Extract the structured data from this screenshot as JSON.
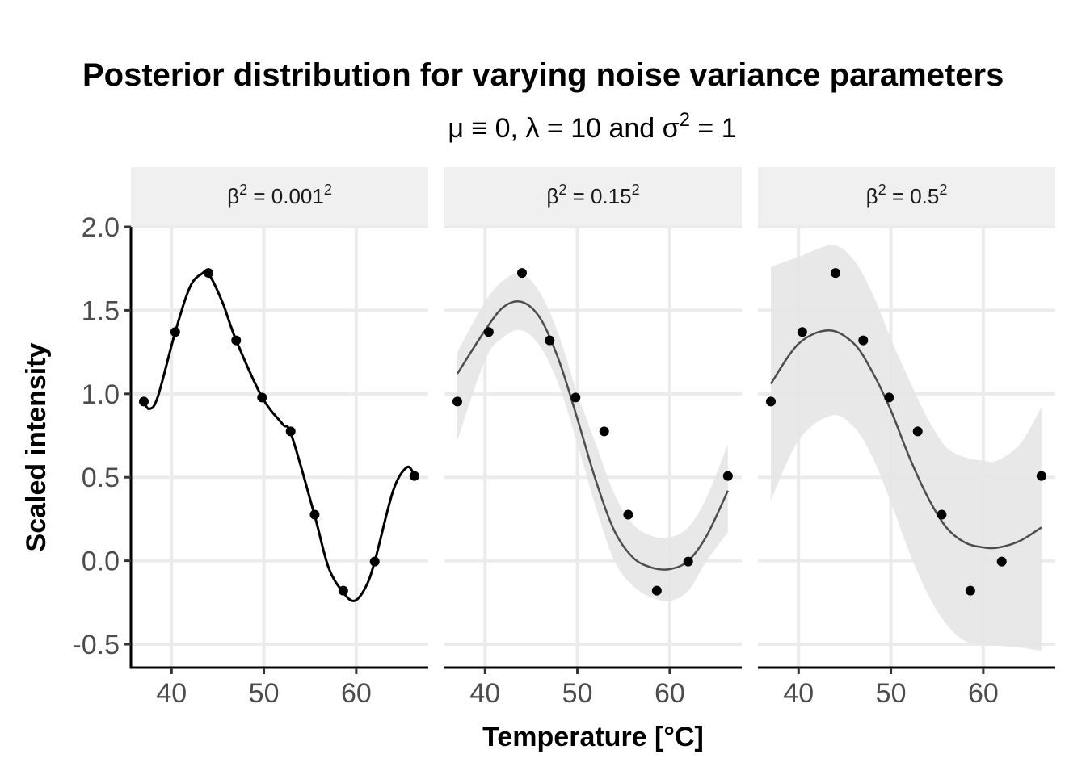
{
  "chart_data": {
    "type": "scatter",
    "title": "Posterior distribution for varying noise variance parameters",
    "subtitle": {
      "text": "μ ≡ 0, λ = 10 and σ",
      "sup": "2",
      "tail": " = 1"
    },
    "xlabel": "Temperature [°C]",
    "ylabel": "Scaled intensity",
    "xlim": [
      35.6,
      67.8
    ],
    "ylim": [
      -0.64,
      2.0
    ],
    "xticks": [
      40,
      50,
      60
    ],
    "yticks": [
      -0.5,
      0.0,
      0.5,
      1.0,
      1.5,
      2.0
    ],
    "ytick_labels": [
      "-0.5",
      "0.0",
      "0.5",
      "1.0",
      "1.5",
      "2.0"
    ],
    "grid": true,
    "colors": {
      "points": "#000000",
      "mean_line": "#4d4d4d",
      "band": "#e5e5e5",
      "strip": "#f0f0f0",
      "grid": "#ebebeb"
    },
    "points": {
      "x": [
        37.0,
        40.4,
        44.0,
        47.0,
        49.8,
        52.9,
        55.5,
        58.6,
        62.0,
        66.3
      ],
      "y": [
        0.954,
        1.37,
        1.724,
        1.32,
        0.978,
        0.775,
        0.276,
        -0.179,
        -0.005,
        0.508
      ]
    },
    "panels": [
      {
        "label": {
          "pre": "β",
          "sup1": "2",
          "mid": " = 0.001",
          "sup2": "2"
        },
        "mean": [
          [
            37,
            0.95
          ],
          [
            37.6,
            0.91
          ],
          [
            38.5,
            0.98
          ],
          [
            40.4,
            1.37
          ],
          [
            42,
            1.64
          ],
          [
            43.3,
            1.72
          ],
          [
            44,
            1.72
          ],
          [
            45.5,
            1.55
          ],
          [
            47,
            1.32
          ],
          [
            49.8,
            0.98
          ],
          [
            52,
            0.82
          ],
          [
            53,
            0.75
          ],
          [
            55.5,
            0.27
          ],
          [
            57,
            -0.04
          ],
          [
            58.6,
            -0.19
          ],
          [
            59.8,
            -0.24
          ],
          [
            61,
            -0.16
          ],
          [
            62,
            -0.005
          ],
          [
            64,
            0.42
          ],
          [
            65.5,
            0.56
          ],
          [
            66.3,
            0.51
          ]
        ],
        "upper": null,
        "lower": null
      },
      {
        "label": {
          "pre": "β",
          "sup1": "2",
          "mid": " = 0.15",
          "sup2": "2"
        },
        "mean": [
          [
            37,
            1.12
          ],
          [
            40,
            1.38
          ],
          [
            42,
            1.52
          ],
          [
            44,
            1.55
          ],
          [
            46,
            1.45
          ],
          [
            48,
            1.2
          ],
          [
            50,
            0.85
          ],
          [
            52,
            0.48
          ],
          [
            54,
            0.18
          ],
          [
            56,
            0.02
          ],
          [
            58,
            -0.04
          ],
          [
            60,
            -0.05
          ],
          [
            62,
            0.0
          ],
          [
            64,
            0.15
          ],
          [
            66.3,
            0.42
          ]
        ],
        "upper": [
          [
            37,
            1.25
          ],
          [
            40,
            1.55
          ],
          [
            42,
            1.68
          ],
          [
            44,
            1.72
          ],
          [
            46,
            1.6
          ],
          [
            48,
            1.35
          ],
          [
            50,
            1.0
          ],
          [
            52,
            0.7
          ],
          [
            54,
            0.4
          ],
          [
            56,
            0.22
          ],
          [
            58,
            0.15
          ],
          [
            60,
            0.14
          ],
          [
            62,
            0.2
          ],
          [
            64,
            0.38
          ],
          [
            66.3,
            0.7
          ]
        ],
        "lower": [
          [
            37,
            0.72
          ],
          [
            40,
            1.2
          ],
          [
            42,
            1.34
          ],
          [
            44,
            1.38
          ],
          [
            46,
            1.28
          ],
          [
            48,
            1.05
          ],
          [
            50,
            0.7
          ],
          [
            52,
            0.32
          ],
          [
            54,
            0.0
          ],
          [
            56,
            -0.15
          ],
          [
            58,
            -0.22
          ],
          [
            60,
            -0.24
          ],
          [
            62,
            -0.18
          ],
          [
            64,
            0.0
          ],
          [
            66.3,
            0.17
          ]
        ]
      },
      {
        "label": {
          "pre": "β",
          "sup1": "2",
          "mid": " = 0.5",
          "sup2": "2"
        },
        "mean": [
          [
            37,
            1.06
          ],
          [
            40,
            1.3
          ],
          [
            43.3,
            1.38
          ],
          [
            46,
            1.3
          ],
          [
            48,
            1.13
          ],
          [
            50,
            0.9
          ],
          [
            52,
            0.62
          ],
          [
            54,
            0.38
          ],
          [
            56,
            0.2
          ],
          [
            58,
            0.11
          ],
          [
            60,
            0.08
          ],
          [
            61.7,
            0.08
          ],
          [
            64,
            0.12
          ],
          [
            66.3,
            0.2
          ]
        ],
        "upper": [
          [
            37,
            1.76
          ],
          [
            40,
            1.82
          ],
          [
            43.7,
            1.89
          ],
          [
            46,
            1.8
          ],
          [
            48,
            1.6
          ],
          [
            50,
            1.33
          ],
          [
            52,
            1.08
          ],
          [
            54,
            0.85
          ],
          [
            56,
            0.68
          ],
          [
            58,
            0.62
          ],
          [
            60,
            0.6
          ],
          [
            61.5,
            0.6
          ],
          [
            64,
            0.7
          ],
          [
            66.3,
            0.92
          ]
        ],
        "lower": [
          [
            37,
            0.36
          ],
          [
            40,
            0.72
          ],
          [
            43.5,
            0.87
          ],
          [
            46,
            0.8
          ],
          [
            48,
            0.62
          ],
          [
            50,
            0.35
          ],
          [
            52,
            0.05
          ],
          [
            54,
            -0.2
          ],
          [
            56,
            -0.38
          ],
          [
            58,
            -0.48
          ],
          [
            60,
            -0.5
          ],
          [
            62,
            -0.51
          ],
          [
            64,
            -0.52
          ],
          [
            66.3,
            -0.54
          ]
        ]
      }
    ]
  }
}
